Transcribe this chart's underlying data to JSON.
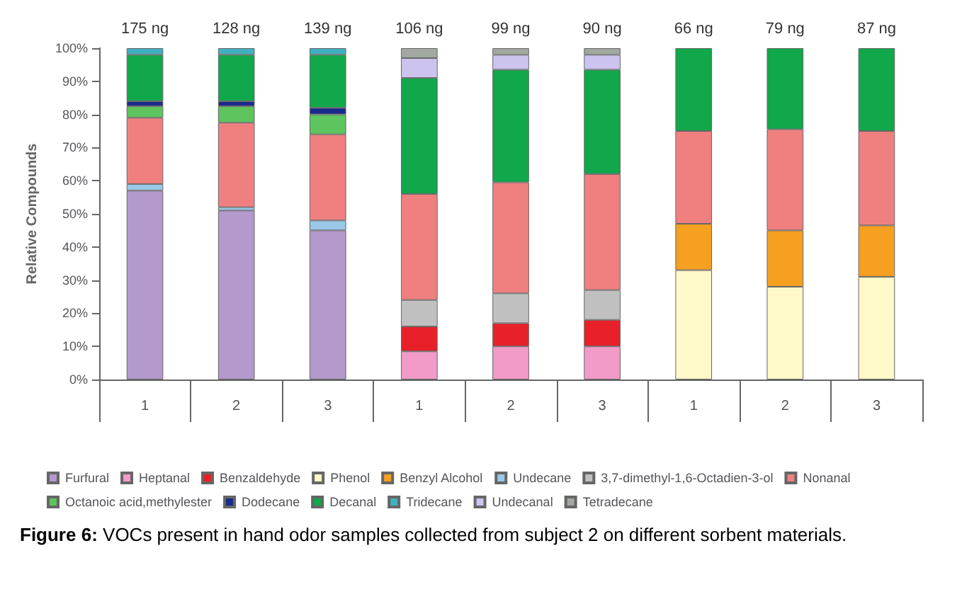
{
  "chart_data": {
    "type": "bar",
    "stacked": true,
    "ylabel": "Relative Compounds",
    "categories": [
      "1",
      "2",
      "3",
      "1",
      "2",
      "3",
      "1",
      "2",
      "3"
    ],
    "series": [
      {
        "name": "Furfural",
        "color": "#b399cc",
        "values": [
          57,
          51,
          45,
          null,
          null,
          null,
          null,
          null,
          null
        ]
      },
      {
        "name": "Heptanal",
        "color": "#f29bc8",
        "values": [
          null,
          null,
          null,
          8.5,
          10,
          10,
          null,
          null,
          null
        ]
      },
      {
        "name": "Benzaldehyde",
        "color": "#e8202a",
        "values": [
          null,
          null,
          null,
          7.5,
          7,
          8,
          null,
          null,
          null
        ]
      },
      {
        "name": "Phenol",
        "color": "#fff8c8",
        "values": [
          null,
          null,
          null,
          null,
          null,
          null,
          33,
          28,
          31
        ]
      },
      {
        "name": "Benzyl Alcohol",
        "color": "#f5a020",
        "values": [
          null,
          null,
          null,
          null,
          null,
          null,
          14,
          17,
          15.5
        ]
      },
      {
        "name": "Undecane",
        "color": "#99c8e8",
        "values": [
          2,
          1,
          3,
          null,
          null,
          null,
          null,
          null,
          null
        ]
      },
      {
        "name": "3,7-dimethyl-1,6-Octadien-3-ol",
        "color": "#c0c0c0",
        "values": [
          null,
          null,
          null,
          8,
          9,
          9,
          null,
          null,
          null
        ]
      },
      {
        "name": "Nonanal",
        "color": "#f08080",
        "values": [
          20,
          25.5,
          26,
          32,
          33.5,
          35,
          28,
          30.5,
          28.5
        ]
      },
      {
        "name": "Octanoic acid,methylester",
        "color": "#5ec45e",
        "values": [
          3.5,
          5,
          6,
          null,
          null,
          null,
          null,
          null,
          null
        ]
      },
      {
        "name": "Dodecane",
        "color": "#1a2a8c",
        "values": [
          1.5,
          1.5,
          2,
          null,
          null,
          null,
          null,
          null,
          null
        ]
      },
      {
        "name": "Decanal",
        "color": "#10a84a",
        "values": [
          14,
          14,
          16,
          35,
          34,
          31.5,
          25,
          24.5,
          25
        ]
      },
      {
        "name": "Tridecane",
        "color": "#40b0c0",
        "values": [
          2,
          2,
          2,
          null,
          null,
          null,
          null,
          null,
          null
        ]
      },
      {
        "name": "Undecanal",
        "color": "#ccc4ee",
        "values": [
          null,
          null,
          null,
          6,
          4.5,
          4.5,
          null,
          null,
          null
        ]
      },
      {
        "name": "Tetradecane",
        "color": "#a0a8a0",
        "values": [
          null,
          null,
          null,
          3,
          2,
          2,
          null,
          null,
          null
        ]
      }
    ],
    "ylim": [
      0,
      100
    ],
    "yticks": [
      {
        "value": 0,
        "label": "0%"
      },
      {
        "value": 10,
        "label": "10%"
      },
      {
        "value": 20,
        "label": "20%"
      },
      {
        "value": 30,
        "label": "30%"
      },
      {
        "value": 40,
        "label": "40%"
      },
      {
        "value": 50,
        "label": "50%"
      },
      {
        "value": 60,
        "label": "60%"
      },
      {
        "value": 70,
        "label": "70%"
      },
      {
        "value": 80,
        "label": "80%"
      },
      {
        "value": 90,
        "label": "90%"
      },
      {
        "value": 100,
        "label": "100%"
      }
    ],
    "grid": false,
    "legend": "bottom",
    "annotations": [
      "175 ng",
      "128 ng",
      "139 ng",
      "106 ng",
      "99 ng",
      "90 ng",
      "66 ng",
      "79 ng",
      "87 ng",
      "Figure 6: VOCs present in hand odor samples collected from subject 2 on different sorbent materials."
    ]
  }
}
